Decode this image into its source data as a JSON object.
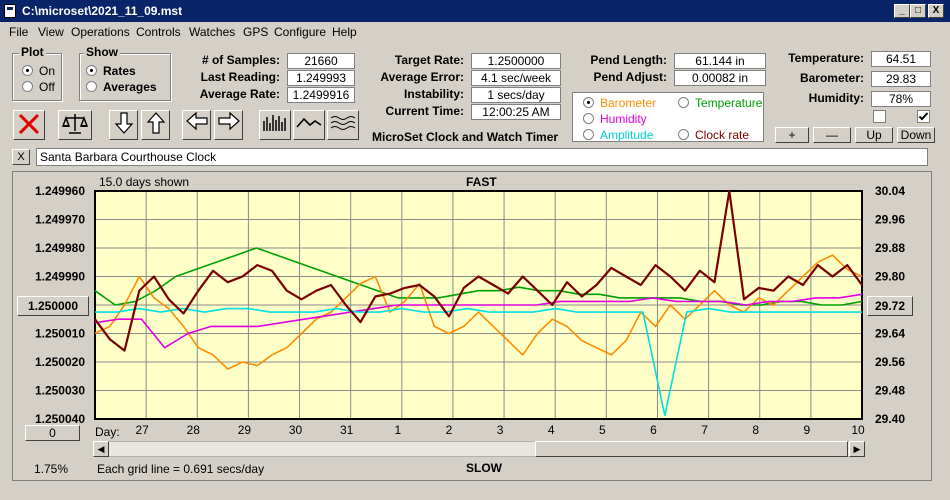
{
  "window": {
    "title": "C:\\microset\\2021_11_09.mst",
    "min": "_",
    "max": "□",
    "close": "X"
  },
  "menu": [
    "File",
    "View",
    "Operations",
    "Controls",
    "Watches",
    "GPS",
    "Configure",
    "Help"
  ],
  "plot_group": {
    "title": "Plot",
    "on": "On",
    "off": "Off",
    "selected": "On"
  },
  "show_group": {
    "title": "Show",
    "rates": "Rates",
    "averages": "Averages",
    "selected": "Rates"
  },
  "stats": {
    "samples_label": "# of Samples:",
    "samples": "21660",
    "last_label": "Last Reading:",
    "last": "1.249993",
    "avg_label": "Average Rate:",
    "avg": "1.2499916"
  },
  "target": {
    "target_label": "Target Rate:",
    "target": "1.2500000",
    "avgerr_label": "Average Error:",
    "avgerr": "4.1 sec/week",
    "instab_label": "Instability:",
    "instab": "1 secs/day",
    "time_label": "Current Time:",
    "time": "12:00:25 AM"
  },
  "app_name": "MicroSet Clock and Watch Timer",
  "pend": {
    "len_label": "Pend Length:",
    "len": "61.144 in",
    "adj_label": "Pend Adjust:",
    "adj": "0.00082 in"
  },
  "env": {
    "temp_label": "Temperature:",
    "temp": "64.51",
    "baro_label": "Barometer:",
    "baro": "29.83",
    "hum_label": "Humidity:",
    "hum": "78%",
    "check1": false,
    "check2": true
  },
  "series_select": {
    "barometer": "Barometer",
    "temperature": "Temperature",
    "humidity": "Humidity",
    "amplitude": "Amplitude",
    "clock_rate": "Clock rate",
    "selected": "Barometer"
  },
  "scale_buttons": {
    "plus": "+",
    "minus": "—",
    "up": "Up",
    "down": "Down"
  },
  "clock_name": "Santa Barbara Courthouse Clock",
  "clear_label": "X",
  "plot": {
    "days_shown": "15.0 days shown",
    "fast": "FAST",
    "slow": "SLOW",
    "grid_note": "Each grid line = 0.691 secs/day",
    "center_button": "1.250000",
    "right_button": "29.72",
    "zero_button": "0",
    "pct": "1.75%",
    "day_label": "Day:"
  },
  "colors": {
    "plot_bg": "#ffffc8",
    "grid": "#8a8a8a",
    "rate": "#7a0000",
    "barometer": "#ff8c00",
    "temperature": "#00a000",
    "humidity": "#e000e0",
    "amplitude": "#00e0e0"
  },
  "chart_data": {
    "type": "line",
    "left_axis": {
      "ticks": [
        "1.249960",
        "1.249970",
        "1.249980",
        "1.249990",
        "1.250000",
        "1.250010",
        "1.250020",
        "1.250030",
        "1.250040"
      ],
      "ylim": [
        1.24996,
        1.25004
      ],
      "inverted": true
    },
    "right_axis": {
      "ticks": [
        "30.04",
        "29.96",
        "29.88",
        "29.80",
        "29.72",
        "29.64",
        "29.56",
        "29.48",
        "29.40"
      ],
      "ylim": [
        29.4,
        30.04
      ]
    },
    "x_ticks": [
      "27",
      "28",
      "29",
      "30",
      "31",
      "1",
      "2",
      "3",
      "4",
      "5",
      "6",
      "7",
      "8",
      "9",
      "10"
    ],
    "xlim": [
      0,
      15
    ],
    "series": [
      {
        "key": "rate",
        "values": [
          1.250005,
          1.250012,
          1.250016,
          1.249995,
          1.24999,
          1.249998,
          1.250003,
          1.249995,
          1.249988,
          1.249992,
          1.24999,
          1.249986,
          1.249988,
          1.249995,
          1.249998,
          1.249995,
          1.249993,
          1.25,
          1.250006,
          1.249997,
          1.249996,
          1.249994,
          1.249993,
          1.249997,
          1.250004,
          1.249994,
          1.24999,
          1.249993,
          1.249996,
          1.24999,
          1.249995,
          1.25,
          1.249992,
          1.249997,
          1.249993,
          1.249987,
          1.24999,
          1.249993,
          1.249986,
          1.24999,
          1.249995,
          1.249988,
          1.249992,
          1.24996,
          1.249998,
          1.249994,
          1.249995,
          1.24999,
          1.249993,
          1.249986,
          1.24999,
          1.249986,
          1.249993
        ]
      },
      {
        "key": "barometer",
        "values": [
          29.64,
          29.66,
          29.72,
          29.8,
          29.74,
          29.71,
          29.66,
          29.6,
          29.58,
          29.54,
          29.56,
          29.55,
          29.58,
          29.6,
          29.64,
          29.68,
          29.7,
          29.74,
          29.78,
          29.8,
          29.7,
          29.73,
          29.78,
          29.66,
          29.64,
          29.66,
          29.7,
          29.66,
          29.62,
          29.58,
          29.64,
          29.68,
          29.66,
          29.62,
          29.6,
          29.58,
          29.62,
          29.7,
          29.66,
          29.72,
          29.68,
          29.72,
          29.76,
          29.72,
          29.7,
          29.74,
          29.72,
          29.76,
          29.8,
          29.84,
          29.86,
          29.82,
          29.8
        ]
      },
      {
        "key": "temperature",
        "values": [
          29.76,
          29.72,
          29.73,
          29.76,
          29.8,
          29.82,
          29.84,
          29.86,
          29.88,
          29.86,
          29.84,
          29.82,
          29.8,
          29.78,
          29.76,
          29.74,
          29.74,
          29.74,
          29.75,
          29.76,
          29.76,
          29.77,
          29.76,
          29.76,
          29.75,
          29.75,
          29.74,
          29.74,
          29.74,
          29.74,
          29.73,
          29.73,
          29.72,
          29.72,
          29.73,
          29.73,
          29.72,
          29.72,
          29.73
        ]
      },
      {
        "key": "humidity",
        "values": [
          29.67,
          29.68,
          29.68,
          29.6,
          29.64,
          29.66,
          29.66,
          29.66,
          29.67,
          29.68,
          29.69,
          29.7,
          29.71,
          29.72,
          29.72,
          29.72,
          29.72,
          29.72,
          29.72,
          29.72,
          29.73,
          29.73,
          29.73,
          29.73,
          29.74,
          29.73,
          29.73,
          29.73,
          29.72,
          29.73,
          29.73,
          29.74,
          29.74,
          29.75
        ]
      },
      {
        "key": "amplitude",
        "values": [
          29.7,
          29.7,
          29.71,
          29.7,
          29.71,
          29.7,
          29.71,
          29.71,
          29.7,
          29.7,
          29.7,
          29.71,
          29.7,
          29.7,
          29.71,
          29.7,
          29.7,
          29.71,
          29.7,
          29.7,
          29.7,
          29.71,
          29.7,
          29.7,
          29.7,
          29.7,
          29.41,
          29.7,
          29.71,
          29.7,
          29.7,
          29.7,
          29.7,
          29.7,
          29.7,
          29.7
        ]
      }
    ]
  }
}
